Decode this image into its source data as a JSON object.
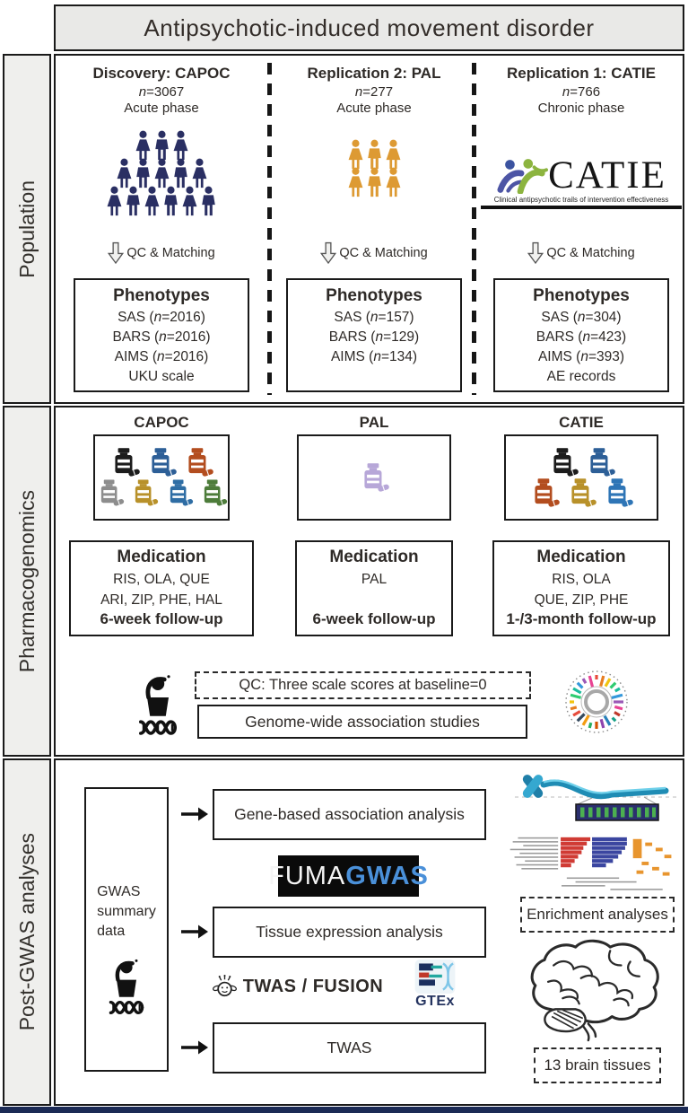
{
  "title": "Antipsychotic-induced movement disorder",
  "sidebar": {
    "rows": [
      {
        "label": "Population"
      },
      {
        "label": "Pharmacogenomics"
      },
      {
        "label": "Post-GWAS analyses"
      }
    ]
  },
  "population": {
    "columns": [
      {
        "header": "Discovery: CAPOC",
        "n": "n=3067",
        "phase": "Acute phase",
        "arrow_label": "QC & Matching",
        "people": {
          "rows": [
            3,
            5,
            6
          ],
          "color": "#2a2f63"
        },
        "phenotypes": {
          "title": "Phenotypes",
          "lines": [
            "SAS (n=2016)",
            "BARS (n=2016)",
            "AIMS (n=2016)",
            "UKU scale"
          ]
        }
      },
      {
        "header": "Replication 2: PAL",
        "n": "n=277",
        "phase": "Acute phase",
        "arrow_label": "QC & Matching",
        "people": {
          "rows": [
            3,
            3
          ],
          "color": "#dd9a33"
        },
        "phenotypes": {
          "title": "Phenotypes",
          "lines": [
            "SAS (n=157)",
            "BARS (n=129)",
            "AIMS (n=134)"
          ]
        }
      },
      {
        "header": "Replication 1: CATIE",
        "n": "n=766",
        "phase": "Chronic phase",
        "arrow_label": "QC & Matching",
        "logo": {
          "word": "CATIE",
          "tagline": "Clinical antipsychotic trails of intervention effectiveness"
        },
        "phenotypes": {
          "title": "Phenotypes",
          "lines": [
            "SAS (n=304)",
            "BARS (n=423)",
            "AIMS (n=393)",
            "AE records"
          ]
        }
      }
    ]
  },
  "pharmacogenomics": {
    "columns": [
      {
        "header": "CAPOC",
        "bottles": {
          "rows": [
            [
              "#1c1c1c",
              "#2d5f97",
              "#b34d1f"
            ],
            [
              "#8d8d8d",
              "#b8912a",
              "#2e6da4",
              "#4d7c3a"
            ]
          ]
        },
        "medication": {
          "title": "Medication",
          "lines": [
            "RIS, OLA, QUE",
            "ARI, ZIP, PHE, HAL"
          ],
          "followup": "6-week follow-up"
        }
      },
      {
        "header": "PAL",
        "bottles": {
          "rows": [
            [
              "#b7a7d8"
            ]
          ]
        },
        "medication": {
          "title": "Medication",
          "lines": [
            "PAL"
          ],
          "followup": "6-week follow-up"
        }
      },
      {
        "header": "CATIE",
        "bottles": {
          "rows": [
            [
              "#1c1c1c",
              "#2d5f97"
            ],
            [
              "#b34d1f",
              "#b8912a",
              "#2e75b6"
            ]
          ]
        },
        "medication": {
          "title": "Medication",
          "lines": [
            "RIS, OLA",
            "QUE, ZIP, PHE"
          ],
          "followup": "1-/3-month follow-up"
        }
      }
    ],
    "qc_note": "QC: Three scale scores at baseline=0",
    "gwas_label": "Genome-wide association studies"
  },
  "postgwas": {
    "summary_lines": [
      "GWAS",
      "summary",
      "data"
    ],
    "boxes": [
      {
        "label": "Gene-based association analysis"
      },
      {
        "label": "Tissue expression analysis"
      },
      {
        "label": "TWAS"
      }
    ],
    "fuma": {
      "part1": "FUMA",
      "part2": "GWAS",
      "accent": "#4a90d9"
    },
    "twas_fusion": "TWAS / FUSION",
    "gtex": "GTEx",
    "enrichment_label": "Enrichment analyses",
    "brain_label": "13 brain tissues"
  }
}
